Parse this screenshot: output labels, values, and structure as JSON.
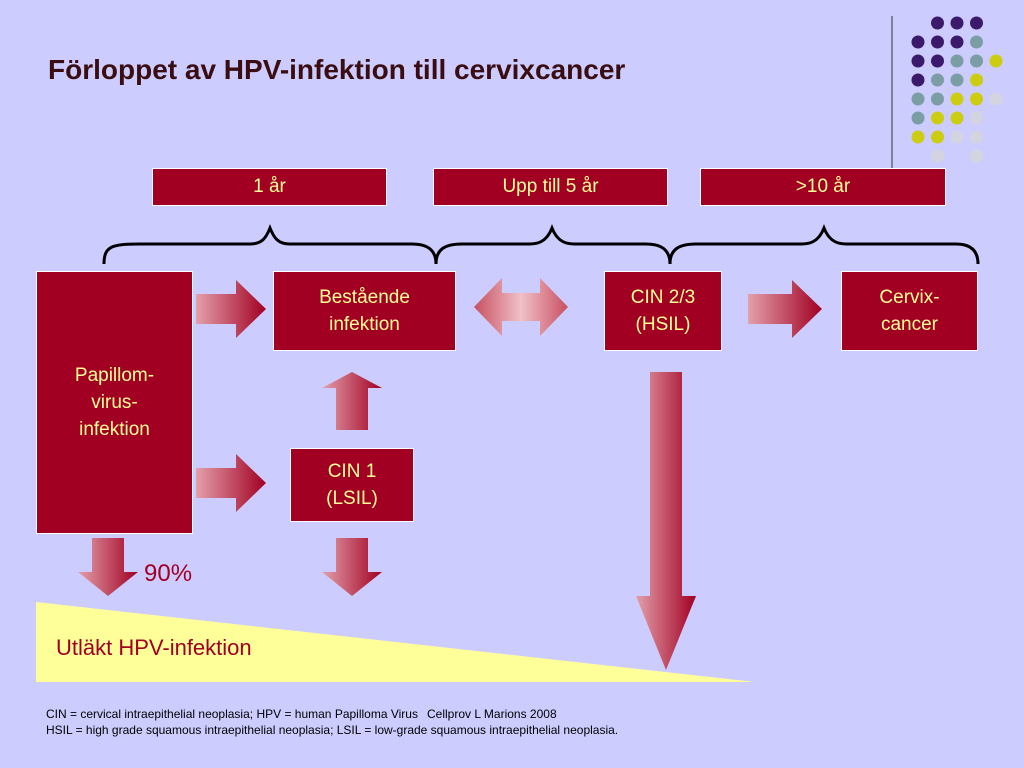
{
  "title": "Förloppet av HPV-infektion till cervixcancer",
  "timeline": [
    "1 år",
    "Upp till 5 år",
    ">10 år"
  ],
  "boxes": {
    "papillom": "Papillom-\nvirus-\ninfektion",
    "bestaende": "Bestående\ninfektion",
    "cin23": "CIN 2/3\n(HSIL)",
    "cervix": "Cervix-\ncancer",
    "cin1": "CIN 1\n(LSIL)"
  },
  "percent": "90%",
  "cleared": "Utläkt HPV-infektion",
  "footnotes": {
    "line1": "CIN = cervical intraepithelial neoplasia; HPV = human Papilloma Virus",
    "line2": "HSIL = high grade squamous intraepithelial neoplasia; LSIL = low-grade squamous intraepithelial neoplasia.",
    "credit": "Cellprov L Marions 2008"
  },
  "colors": {
    "background": "#ccccff",
    "box": "#a10022",
    "box_text": "#ffff99",
    "wedge": "#ffff99",
    "arrow_light": "#d98b97",
    "arrow_dark": "#a10022",
    "dot_purple": "#3c1a6b",
    "dot_teal": "#7a9ea3",
    "dot_yellow": "#cccc11",
    "dot_grey": "#d4d4e0"
  }
}
